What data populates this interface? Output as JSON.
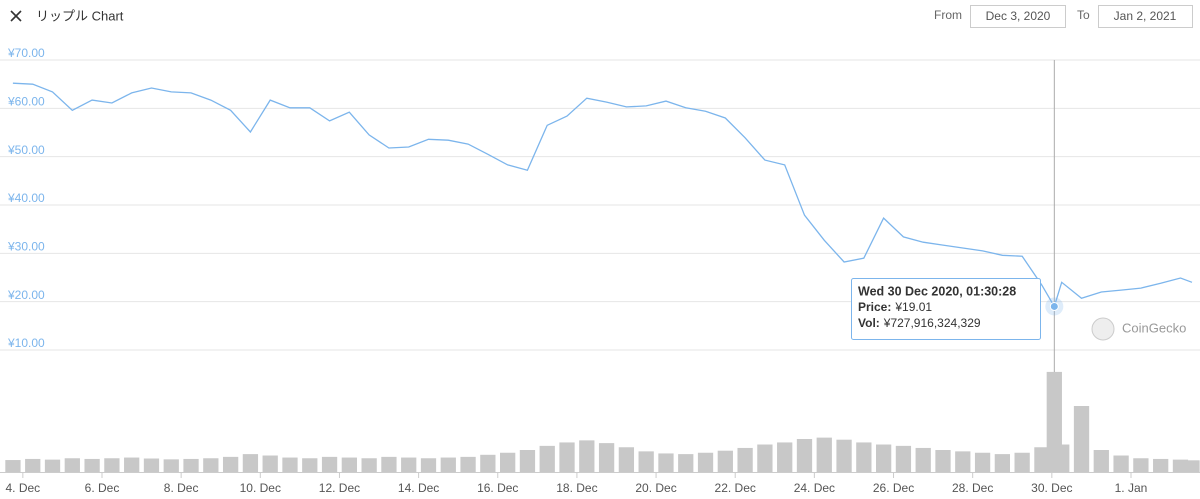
{
  "header": {
    "title": "リップル Chart",
    "from_label": "From",
    "from": "Dec 3, 2020",
    "to_label": "To",
    "to": "Jan 2, 2021"
  },
  "chart_data": {
    "type": "line",
    "x": [
      "2020-12-03T18:00",
      "2020-12-04T06:00",
      "2020-12-04T18:00",
      "2020-12-05T06:00",
      "2020-12-05T18:00",
      "2020-12-06T06:00",
      "2020-12-06T18:00",
      "2020-12-07T06:00",
      "2020-12-07T18:00",
      "2020-12-08T06:00",
      "2020-12-08T18:00",
      "2020-12-09T06:00",
      "2020-12-09T18:00",
      "2020-12-10T06:00",
      "2020-12-10T18:00",
      "2020-12-11T06:00",
      "2020-12-11T18:00",
      "2020-12-12T06:00",
      "2020-12-12T18:00",
      "2020-12-13T06:00",
      "2020-12-13T18:00",
      "2020-12-14T06:00",
      "2020-12-14T18:00",
      "2020-12-15T06:00",
      "2020-12-15T18:00",
      "2020-12-16T06:00",
      "2020-12-16T18:00",
      "2020-12-17T06:00",
      "2020-12-17T18:00",
      "2020-12-18T06:00",
      "2020-12-18T18:00",
      "2020-12-19T06:00",
      "2020-12-19T18:00",
      "2020-12-20T06:00",
      "2020-12-20T18:00",
      "2020-12-21T06:00",
      "2020-12-21T18:00",
      "2020-12-22T06:00",
      "2020-12-22T18:00",
      "2020-12-23T06:00",
      "2020-12-23T18:00",
      "2020-12-24T06:00",
      "2020-12-24T18:00",
      "2020-12-25T06:00",
      "2020-12-25T18:00",
      "2020-12-26T06:00",
      "2020-12-26T18:00",
      "2020-12-27T06:00",
      "2020-12-27T18:00",
      "2020-12-28T06:00",
      "2020-12-28T18:00",
      "2020-12-29T06:00",
      "2020-12-29T18:00",
      "2020-12-30T01:30:28",
      "2020-12-30T06:00",
      "2020-12-30T18:00",
      "2020-12-31T06:00",
      "2020-12-31T18:00",
      "2021-01-01T06:00",
      "2021-01-01T18:00",
      "2021-01-02T06:00",
      "2021-01-02T13:00"
    ],
    "series": [
      {
        "color": "#7cb5ec",
        "values": [
          65.2,
          65.0,
          63.4,
          59.6,
          61.7,
          61.1,
          63.2,
          64.2,
          63.4,
          63.2,
          61.7,
          59.6,
          55.1,
          61.7,
          60.1,
          60.1,
          57.4,
          59.2,
          54.5,
          51.8,
          52.0,
          53.6,
          53.4,
          52.6,
          50.5,
          48.3,
          47.2,
          56.5,
          58.4,
          62.1,
          61.3,
          60.3,
          60.5,
          61.5,
          60.1,
          59.4,
          58.0,
          53.9,
          49.3,
          48.3,
          37.9,
          32.7,
          28.2,
          29.0,
          37.3,
          33.4,
          32.3,
          31.7,
          31.1,
          30.5,
          29.6,
          29.4,
          23.4,
          19.01,
          24.0,
          20.7,
          22.0,
          22.4,
          22.8,
          23.8,
          24.9,
          24.0
        ]
      },
      {
        "color": "#c8c8c8",
        "axis": "y2",
        "values": [
          87000000000,
          95000000000,
          90000000000,
          100000000000,
          95000000000,
          100000000000,
          105000000000,
          98000000000,
          92000000000,
          95000000000,
          100000000000,
          110000000000,
          130000000000,
          120000000000,
          105000000000,
          100000000000,
          110000000000,
          105000000000,
          100000000000,
          110000000000,
          105000000000,
          100000000000,
          105000000000,
          110000000000,
          125000000000,
          140000000000,
          160000000000,
          190000000000,
          215000000000,
          230000000000,
          210000000000,
          180000000000,
          150000000000,
          135000000000,
          130000000000,
          140000000000,
          155000000000,
          175000000000,
          200000000000,
          215000000000,
          240000000000,
          250000000000,
          235000000000,
          215000000000,
          200000000000,
          190000000000,
          175000000000,
          160000000000,
          150000000000,
          140000000000,
          130000000000,
          140000000000,
          180000000000,
          727916324329,
          200000000000,
          480000000000,
          160000000000,
          120000000000,
          100000000000,
          95000000000,
          90000000000,
          85000000000
        ]
      }
    ],
    "xlim": [
      "2020-12-03T15:00",
      "2021-01-02T13:00"
    ],
    "xticks": [
      {
        "value": "2020-12-04T00:00",
        "label": "4. Dec"
      },
      {
        "value": "2020-12-06T00:00",
        "label": "6. Dec"
      },
      {
        "value": "2020-12-08T00:00",
        "label": "8. Dec"
      },
      {
        "value": "2020-12-10T00:00",
        "label": "10. Dec"
      },
      {
        "value": "2020-12-12T00:00",
        "label": "12. Dec"
      },
      {
        "value": "2020-12-14T00:00",
        "label": "14. Dec"
      },
      {
        "value": "2020-12-16T00:00",
        "label": "16. Dec"
      },
      {
        "value": "2020-12-18T00:00",
        "label": "18. Dec"
      },
      {
        "value": "2020-12-20T00:00",
        "label": "20. Dec"
      },
      {
        "value": "2020-12-22T00:00",
        "label": "22. Dec"
      },
      {
        "value": "2020-12-24T00:00",
        "label": "24. Dec"
      },
      {
        "value": "2020-12-26T00:00",
        "label": "26. Dec"
      },
      {
        "value": "2020-12-28T00:00",
        "label": "28. Dec"
      },
      {
        "value": "2020-12-30T00:00",
        "label": "30. Dec"
      },
      {
        "value": "2021-01-01T00:00",
        "label": "1. Jan"
      }
    ],
    "ylim": [
      10,
      70
    ],
    "yticks": [
      {
        "value": 10,
        "label": "¥10.00"
      },
      {
        "value": 20,
        "label": "¥20.00"
      },
      {
        "value": 30,
        "label": "¥30.00"
      },
      {
        "value": 40,
        "label": "¥40.00"
      },
      {
        "value": 50,
        "label": "¥50.00"
      },
      {
        "value": 60,
        "label": "¥60.00"
      },
      {
        "value": 70,
        "label": "¥70.00"
      }
    ],
    "y2lim": [
      0,
      800000000000
    ],
    "grid": true,
    "tooltip": {
      "index": 53,
      "title": "Wed 30 Dec 2020, 01:30:28",
      "price_label": "Price:",
      "price": "¥19.01",
      "vol_label": "Vol:",
      "vol": "¥727,916,324,329"
    },
    "watermark": "CoinGecko"
  }
}
